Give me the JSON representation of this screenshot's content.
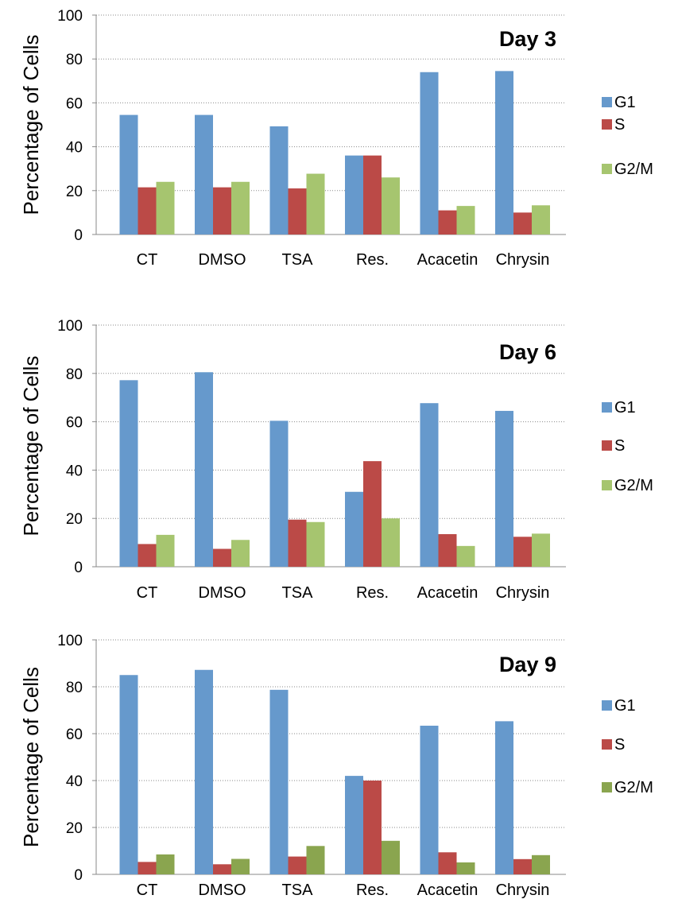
{
  "chart_data": [
    {
      "type": "bar",
      "title": "Day 3",
      "ylabel": "Percentage of Cells",
      "ylim": [
        0,
        100
      ],
      "yticks": [
        "0",
        "20",
        "40",
        "60",
        "80",
        "100"
      ],
      "grid": true,
      "legend_position": "right",
      "categories": [
        "CT",
        "DMSO",
        "TSA",
        "Res.",
        "Acacetin",
        "Chrysin"
      ],
      "series": [
        {
          "name": "G1",
          "color": "#6699cc",
          "values": [
            54.5,
            54.5,
            49.3,
            36.0,
            74.0,
            74.5
          ]
        },
        {
          "name": "S",
          "color": "#bb4a47",
          "values": [
            21.5,
            21.5,
            21.0,
            36.0,
            11.0,
            10.0
          ]
        },
        {
          "name": "G2/M",
          "color": "#a6c56f",
          "values": [
            24.0,
            24.0,
            27.7,
            26.0,
            13.0,
            13.3
          ]
        }
      ]
    },
    {
      "type": "bar",
      "title": "Day 6",
      "ylabel": "Percentage of Cells",
      "ylim": [
        0,
        100
      ],
      "yticks": [
        "0",
        "20",
        "40",
        "60",
        "80",
        "100"
      ],
      "grid": true,
      "legend_position": "right",
      "categories": [
        "CT",
        "DMSO",
        "TSA",
        "Res.",
        "Acacetin",
        "Chrysin"
      ],
      "series": [
        {
          "name": "G1",
          "color": "#6699cc",
          "values": [
            77.2,
            80.5,
            60.4,
            31.0,
            67.7,
            64.5
          ]
        },
        {
          "name": "S",
          "color": "#bb4a47",
          "values": [
            9.4,
            7.4,
            19.5,
            43.7,
            13.5,
            12.4
          ]
        },
        {
          "name": "G2/M",
          "color": "#a6c56f",
          "values": [
            13.2,
            11.1,
            18.5,
            20.0,
            8.6,
            13.7
          ]
        }
      ]
    },
    {
      "type": "bar",
      "title": "Day 9",
      "ylabel": "Percentage of Cells",
      "ylim": [
        0,
        100
      ],
      "yticks": [
        "0",
        "20",
        "40",
        "60",
        "80",
        "100"
      ],
      "grid": true,
      "legend_position": "right",
      "categories": [
        "CT",
        "DMSO",
        "TSA",
        "Res.",
        "Acacetin",
        "Chrysin"
      ],
      "series": [
        {
          "name": "G1",
          "color": "#6699cc",
          "values": [
            85.0,
            87.2,
            78.7,
            42.0,
            63.4,
            65.3
          ]
        },
        {
          "name": "S",
          "color": "#bb4a47",
          "values": [
            5.3,
            4.3,
            7.6,
            40.0,
            9.4,
            6.5
          ]
        },
        {
          "name": "G2/M",
          "color": "#8aa54f",
          "values": [
            8.5,
            6.6,
            12.1,
            14.3,
            5.1,
            8.2
          ]
        }
      ]
    }
  ]
}
